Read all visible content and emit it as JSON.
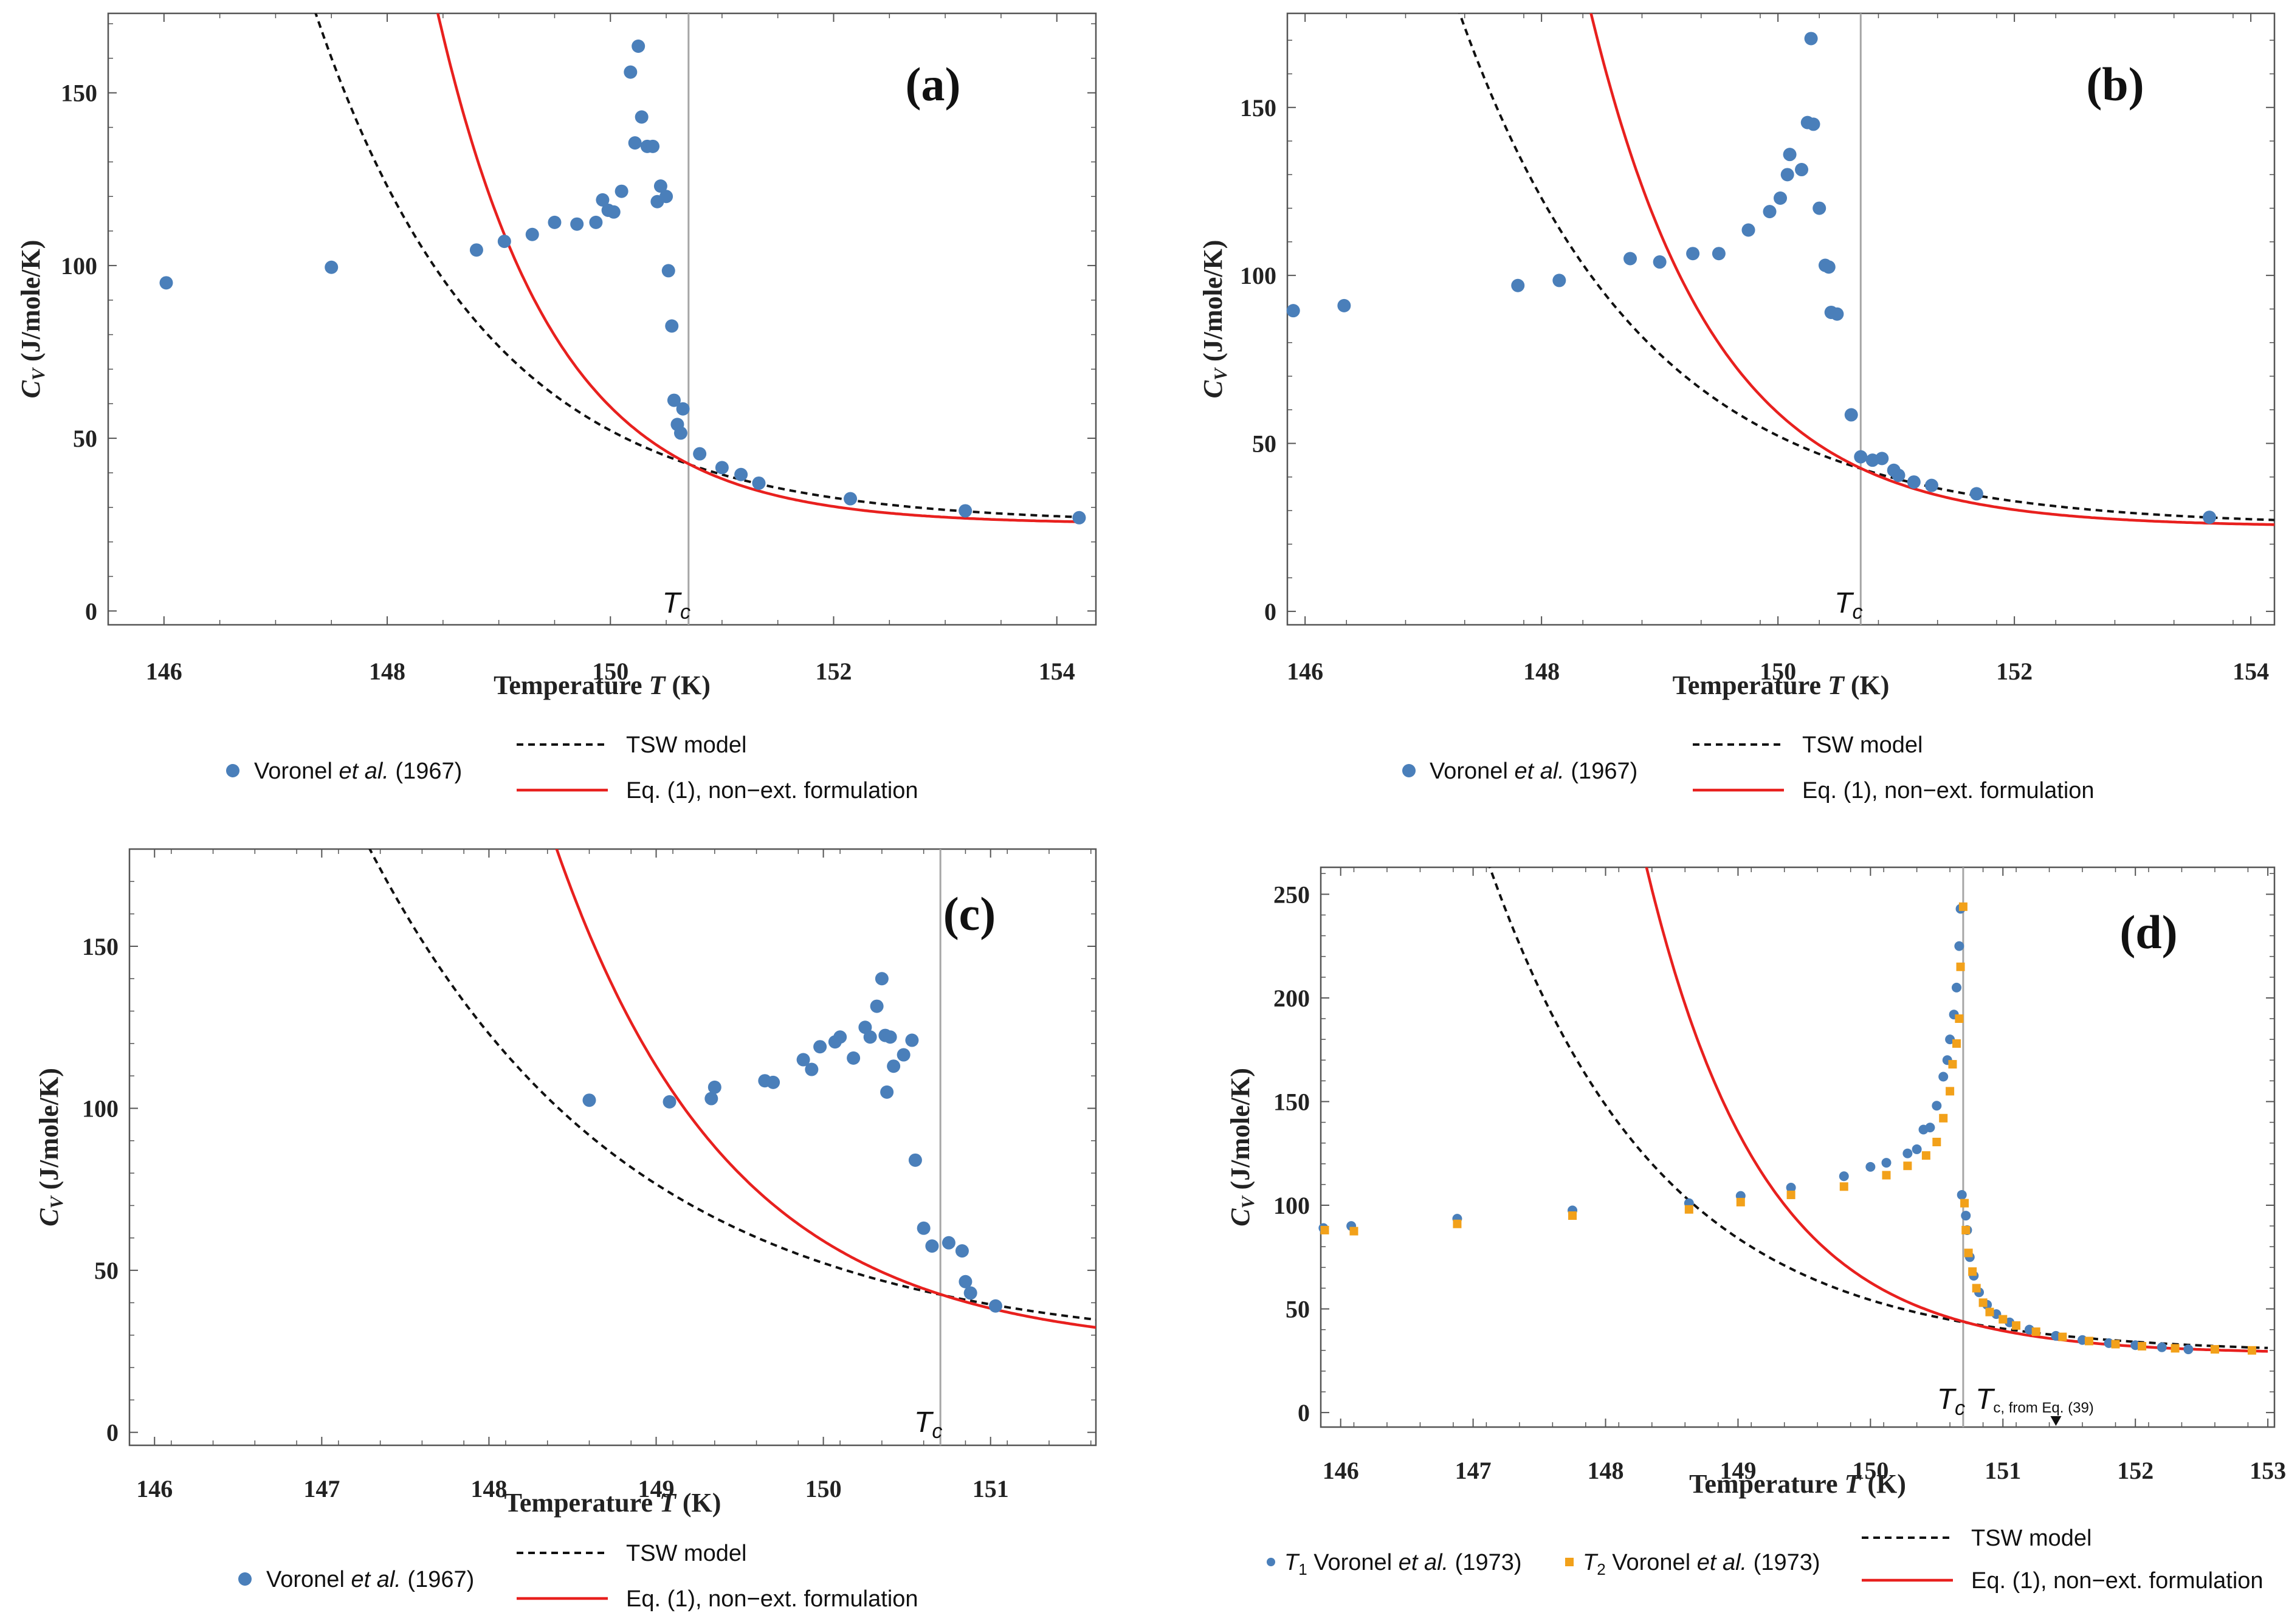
{
  "colors": {
    "blue_points": "#4a7fba",
    "orange_points": "#f2a11a",
    "tsw_curve": "#111111",
    "eq1_curve": "#e8201e",
    "tc_line": "#a6a6a6",
    "frame": "#555555"
  },
  "chart_data": [
    {
      "panel": "a",
      "type": "scatter",
      "panel_label": "(a)",
      "xlabel": "Temperature T (K)",
      "ylabel": "C_V (J/mole/K)",
      "xlim": [
        145.5,
        154.35
      ],
      "ylim": [
        -4,
        173
      ],
      "xticks": [
        146,
        148,
        150,
        152,
        154
      ],
      "yticks": [
        0,
        50,
        100,
        150
      ],
      "tc": 150.7,
      "tc_label": "T_c",
      "series": [
        {
          "name": "Voronel et al. (1967)",
          "kind": "points",
          "x": [
            146.02,
            147.5,
            148.8,
            149.05,
            149.3,
            149.5,
            149.7,
            149.87,
            149.93,
            149.98,
            150.03,
            150.1,
            150.18,
            150.22,
            150.25,
            150.28,
            150.33,
            150.38,
            150.42,
            150.45,
            150.5,
            150.52,
            150.55,
            150.57,
            150.6,
            150.63,
            150.65,
            150.8,
            151.0,
            151.17,
            151.33,
            152.15,
            153.18,
            154.2
          ],
          "y": [
            95,
            99.5,
            104.5,
            107,
            109,
            112.5,
            112,
            112.5,
            119,
            116,
            115.5,
            121.5,
            156,
            135.5,
            163.5,
            143,
            134.5,
            134.5,
            118.5,
            123,
            120,
            98.5,
            82.5,
            61,
            54,
            51.5,
            58.5,
            45.5,
            41.5,
            39.5,
            37,
            32.5,
            29,
            27
          ]
        },
        {
          "name": "TSW model",
          "kind": "curve",
          "x_start": 146.7,
          "x_end": 154.2
        },
        {
          "name": "Eq. (1), non-ext. formulation",
          "kind": "curve",
          "x_start": 147.8,
          "x_end": 154.2
        }
      ],
      "legend": [
        {
          "label": "Voronel et al. (1967)",
          "symbol": "dot"
        },
        {
          "label": "TSW model",
          "symbol": "dashed"
        },
        {
          "label": "Eq. (1), non−ext. formulation",
          "symbol": "line"
        }
      ]
    },
    {
      "panel": "b",
      "type": "scatter",
      "panel_label": "(b)",
      "xlabel": "Temperature T (K)",
      "ylabel": "C_V (J/mole/K)",
      "xlim": [
        145.85,
        154.2
      ],
      "ylim": [
        -4,
        178
      ],
      "xticks": [
        146,
        148,
        150,
        152,
        154
      ],
      "yticks": [
        0,
        50,
        100,
        150
      ],
      "tc": 150.7,
      "tc_label": "T_c",
      "series": [
        {
          "name": "Voronel et al. (1967)",
          "kind": "points",
          "x": [
            145.9,
            146.33,
            147.8,
            148.15,
            148.75,
            149.0,
            149.28,
            149.5,
            149.75,
            149.93,
            150.02,
            150.08,
            150.1,
            150.2,
            150.25,
            150.28,
            150.3,
            150.35,
            150.4,
            150.43,
            150.45,
            150.5,
            150.62,
            150.7,
            150.8,
            150.88,
            150.98,
            151.02,
            151.15,
            151.3,
            151.68,
            153.65
          ],
          "y": [
            89.5,
            91,
            97,
            98.5,
            105,
            104,
            106.5,
            106.5,
            113.5,
            119,
            123,
            130,
            136,
            131.5,
            145.5,
            170.5,
            145,
            120,
            103,
            102.5,
            89,
            88.5,
            58.5,
            46,
            45,
            45.5,
            42,
            40.5,
            38.5,
            37.5,
            35,
            28
          ]
        },
        {
          "name": "TSW model",
          "kind": "curve",
          "x_start": 146.4,
          "x_end": 154.2
        },
        {
          "name": "Eq. (1), non-ext. formulation",
          "kind": "curve",
          "x_start": 147.85,
          "x_end": 154.2
        }
      ],
      "legend": [
        {
          "label": "Voronel et al. (1967)",
          "symbol": "dot"
        },
        {
          "label": "TSW model",
          "symbol": "dashed"
        },
        {
          "label": "Eq. (1), non−ext. formulation",
          "symbol": "line"
        }
      ]
    },
    {
      "panel": "c",
      "type": "scatter",
      "panel_label": "(c)",
      "xlabel": "Temperature T (K)",
      "ylabel": "C_V (J/mole/K)",
      "xlim": [
        145.85,
        151.63
      ],
      "ylim": [
        -4,
        180
      ],
      "xticks": [
        146,
        147,
        148,
        149,
        150,
        151
      ],
      "yticks": [
        0,
        50,
        100,
        150
      ],
      "tc": 150.7,
      "tc_label": "T_c",
      "series": [
        {
          "name": "Voronel et al. (1967)",
          "kind": "points",
          "x": [
            148.6,
            149.08,
            149.33,
            149.35,
            149.65,
            149.7,
            149.88,
            149.93,
            149.98,
            150.07,
            150.1,
            150.18,
            150.25,
            150.28,
            150.32,
            150.35,
            150.37,
            150.38,
            150.4,
            150.42,
            150.48,
            150.53,
            150.55,
            150.6,
            150.65,
            150.75,
            150.83,
            150.85,
            150.88,
            151.03
          ],
          "y": [
            102.5,
            102,
            103,
            106.5,
            108.5,
            108,
            115,
            112,
            119,
            120.5,
            122,
            115.5,
            125,
            122,
            131.5,
            140,
            122.5,
            105,
            122,
            113,
            116.5,
            121,
            84,
            63,
            57.5,
            58.5,
            56,
            46.5,
            43,
            39
          ]
        },
        {
          "name": "TSW model",
          "kind": "curve",
          "x_start": 146.6,
          "x_end": 151.63
        },
        {
          "name": "Eq. (1), non-ext. formulation",
          "kind": "curve",
          "x_start": 147.82,
          "x_end": 151.63
        }
      ],
      "legend": [
        {
          "label": "Voronel et al. (1967)",
          "symbol": "dot"
        },
        {
          "label": "TSW model",
          "symbol": "dashed"
        },
        {
          "label": "Eq. (1), non−ext. formulation",
          "symbol": "line"
        }
      ]
    },
    {
      "panel": "d",
      "type": "scatter",
      "panel_label": "(d)",
      "xlabel": "Temperature T (K)",
      "ylabel": "C_V (J/mole/K)",
      "xlim": [
        145.85,
        153.05
      ],
      "ylim": [
        -7,
        263
      ],
      "xticks": [
        146,
        147,
        148,
        149,
        150,
        151,
        152,
        153
      ],
      "yticks": [
        0,
        50,
        100,
        150,
        200,
        250
      ],
      "tc": 150.7,
      "tc_label": "T_c",
      "tc_eq39": 151.4,
      "tc_eq39_label": "T_c, from Eq. (39)",
      "series": [
        {
          "name": "T1 Voronel et al. (1973)",
          "kind": "points",
          "marker": "circle",
          "x": [
            145.87,
            146.08,
            146.88,
            147.75,
            148.63,
            149.02,
            149.4,
            149.8,
            150.0,
            150.12,
            150.28,
            150.35,
            150.4,
            150.45,
            150.5,
            150.55,
            150.58,
            150.6,
            150.63,
            150.65,
            150.67,
            150.68,
            150.69,
            150.72,
            150.73,
            150.75,
            150.78,
            150.82,
            150.88,
            150.95,
            151.05,
            151.2,
            151.4,
            151.6,
            151.8,
            152.0,
            152.2,
            152.4
          ],
          "y": [
            89,
            90,
            93.5,
            97.5,
            101,
            104.5,
            108.5,
            114,
            118.5,
            120.5,
            125,
            127,
            136.5,
            137.5,
            148,
            162,
            170,
            180,
            192,
            205,
            225,
            243,
            105,
            95,
            88,
            75,
            66,
            58,
            52,
            47.5,
            43.5,
            40,
            37,
            35,
            33.5,
            32.5,
            31.5,
            30.5
          ]
        },
        {
          "name": "T2 Voronel et al. (1973)",
          "kind": "points",
          "marker": "square",
          "x": [
            145.88,
            146.1,
            146.88,
            147.75,
            148.63,
            149.02,
            149.4,
            149.8,
            150.12,
            150.28,
            150.42,
            150.5,
            150.55,
            150.6,
            150.62,
            150.65,
            150.67,
            150.68,
            150.7,
            150.71,
            150.72,
            150.74,
            150.77,
            150.8,
            150.85,
            150.9,
            151.0,
            151.1,
            151.25,
            151.45,
            151.65,
            151.85,
            152.05,
            152.3,
            152.6,
            152.88
          ],
          "y": [
            88,
            87.5,
            91,
            95,
            98,
            101.5,
            105,
            109,
            114.5,
            119,
            124,
            130.5,
            142,
            155,
            168,
            178,
            190,
            215,
            244,
            101,
            88,
            77,
            68,
            60,
            53,
            48.5,
            45,
            42,
            39,
            36.5,
            34.5,
            33,
            32,
            31,
            30.5,
            30
          ]
        },
        {
          "name": "TSW model",
          "kind": "curve",
          "x_start": 146.0,
          "x_end": 153.0
        },
        {
          "name": "Eq. (1), non-ext. formulation",
          "kind": "curve",
          "x_start": 147.4,
          "x_end": 153.0
        }
      ],
      "legend": [
        {
          "label": "T1 Voronel et al. (1973)",
          "symbol": "dot"
        },
        {
          "label": "T2 Voronel et al. (1973)",
          "symbol": "square"
        },
        {
          "label": "TSW model",
          "symbol": "dashed"
        },
        {
          "label": "Eq. (1), non−ext. formulation",
          "symbol": "line"
        }
      ]
    }
  ]
}
